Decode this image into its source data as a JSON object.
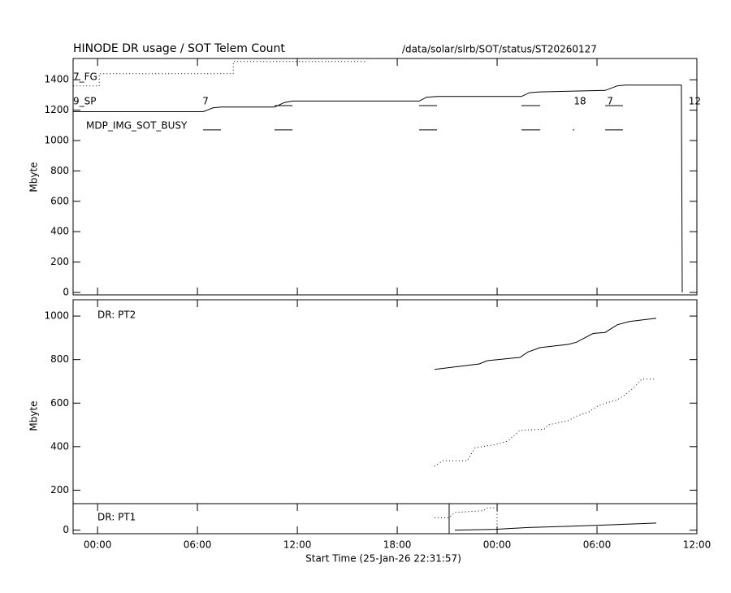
{
  "chart_data": [
    {
      "type": "line",
      "title": "HINODE DR usage / SOT Telem Count",
      "subtitle": "/data/solar/slrb/SOT/status/ST20260127",
      "ylabel": "Mbyte",
      "xlim": [
        -1.47,
        36
      ],
      "ylim": [
        -16,
        1540
      ],
      "yticks": [
        0,
        200,
        400,
        600,
        800,
        1000,
        1200,
        1400
      ],
      "series": [
        {
          "name": "9_SP",
          "color": "#000000",
          "dash": false,
          "x": [
            -1.46,
            6.34,
            6.93,
            7.41,
            10.63,
            11.22,
            11.71,
            19.32,
            19.76,
            20.39,
            25.46,
            25.95,
            26.59,
            30.49,
            31.22,
            31.71,
            35.07,
            35.12
          ],
          "values": [
            1190,
            1190,
            1215,
            1220,
            1220,
            1250,
            1260,
            1260,
            1285,
            1290,
            1290,
            1315,
            1320,
            1330,
            1360,
            1365,
            1365,
            0
          ]
        },
        {
          "name": "7_FG",
          "color": "#000000",
          "dash": true,
          "x": [
            -1.46,
            0.1,
            0.1,
            8.15,
            8.15,
            16.1
          ],
          "values": [
            1360,
            1360,
            1440,
            1440,
            1520,
            1520
          ]
        }
      ],
      "busy_label": "MDP_IMG_SOT_BUSY",
      "busy": [
        {
          "y": 1230,
          "starts": [
            10.63,
            19.32,
            25.46,
            30.49
          ],
          "ends": [
            11.71,
            20.39,
            26.59,
            31.56
          ]
        },
        {
          "y": 1070,
          "starts": [
            6.34,
            10.63,
            19.32,
            25.46,
            28.54,
            30.49
          ],
          "ends": [
            7.41,
            11.71,
            20.39,
            26.59,
            28.63,
            31.56
          ]
        }
      ],
      "annotations": [
        {
          "text": "7",
          "x": 6.3
        },
        {
          "text": "18",
          "x": 28.6
        },
        {
          "text": "7",
          "x": 30.6
        },
        {
          "text": "12",
          "x": 35.5
        }
      ]
    },
    {
      "type": "line",
      "label": "DR: PT2",
      "ylabel": "Mbyte",
      "xlim": [
        -1.47,
        36
      ],
      "ylim": [
        0,
        1075
      ],
      "yticks": [
        200,
        400,
        600,
        800,
        1000
      ],
      "series": [
        {
          "color": "#000000",
          "dash": false,
          "x": [
            20.24,
            22.93,
            23.41,
            25.37,
            25.85,
            26.59,
            28.29,
            28.78,
            29.76,
            30.49,
            31.22,
            31.95,
            33.56
          ],
          "values": [
            755,
            780,
            795,
            810,
            835,
            855,
            870,
            880,
            920,
            925,
            960,
            975,
            990
          ]
        },
        {
          "color": "#000000",
          "dash": true,
          "x": [
            20.24,
            20.73,
            22.2,
            22.68,
            23.9,
            24.63,
            25.37,
            26.83,
            27.07,
            28.29,
            28.78,
            29.51,
            30.0,
            30.49,
            31.22,
            31.71,
            32.2,
            32.68,
            33.41
          ],
          "values": [
            310,
            335,
            335,
            395,
            410,
            425,
            475,
            480,
            500,
            520,
            540,
            560,
            585,
            600,
            615,
            640,
            670,
            710,
            710
          ]
        }
      ]
    },
    {
      "type": "line",
      "label": "DR: PT1",
      "xlabel": "Start Time (25-Jan-26 22:31:57)",
      "xlim": [
        -1.47,
        36
      ],
      "ylim": [
        -20,
        150
      ],
      "xticks": [
        {
          "value": 0,
          "label": "00:00"
        },
        {
          "value": 6,
          "label": "06:00"
        },
        {
          "value": 12,
          "label": "12:00"
        },
        {
          "value": 18,
          "label": "18:00"
        },
        {
          "value": 24,
          "label": "00:00"
        },
        {
          "value": 30,
          "label": "06:00"
        },
        {
          "value": 36,
          "label": "12:00"
        }
      ],
      "yticks": [
        0
      ],
      "markers": [
        21.12
      ],
      "series": [
        {
          "color": "#000000",
          "dash": false,
          "x": [
            21.46,
            23.9,
            25.85,
            28.29,
            30.73,
            32.68,
            33.56
          ],
          "values": [
            0,
            5,
            15,
            22,
            30,
            37,
            40
          ]
        },
        {
          "color": "#000000",
          "dash": true,
          "x": [
            20.24,
            21.12,
            21.46,
            23.17,
            23.41,
            24.0,
            24.0
          ],
          "values": [
            71,
            71,
            100,
            110,
            126,
            126,
            -20
          ]
        }
      ]
    }
  ]
}
